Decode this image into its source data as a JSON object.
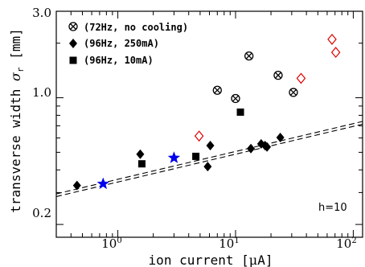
{
  "chart_data": {
    "type": "scatter",
    "xlabel": {
      "main": "ion current [",
      "greek": "μ",
      "unit": "A]"
    },
    "ylabel": {
      "main": "transverse width ",
      "symbol": "σ",
      "sub": "r",
      "unit": " [mm]"
    },
    "x_scale": "log",
    "y_scale": "log",
    "xlim": [
      0.3,
      120
    ],
    "ylim": [
      0.17,
      3.0
    ],
    "x_ticks": [
      {
        "value": 1,
        "base": "10",
        "exp": "0"
      },
      {
        "value": 10,
        "base": "10",
        "exp": "1"
      },
      {
        "value": 100,
        "base": "10",
        "exp": "2"
      }
    ],
    "y_ticks": [
      {
        "value": 0.2,
        "label": "0.2"
      },
      {
        "value": 1.0,
        "label": "1.0"
      },
      {
        "value": 3.0,
        "label": "3.0"
      }
    ],
    "legend_position": "top-left",
    "annotation": "h=10",
    "series": [
      {
        "name": "(72Hz, no cooling)",
        "marker": "circle-x",
        "color": "#000000",
        "x": [
          7,
          10,
          13,
          23,
          31
        ],
        "y": [
          1.1,
          0.99,
          1.7,
          1.33,
          1.07
        ]
      },
      {
        "name": "(96Hz, 250mA)",
        "marker": "diamond",
        "color": "#000000",
        "x": [
          0.45,
          1.55,
          5.8,
          6.1,
          13.5,
          16.5,
          17.8,
          18.5,
          24
        ],
        "y": [
          0.328,
          0.488,
          0.417,
          0.545,
          0.524,
          0.557,
          0.545,
          0.535,
          0.603
        ]
      },
      {
        "name": "(96Hz, 10mA)",
        "marker": "square",
        "color": "#000000",
        "x": [
          1.6,
          4.6,
          11
        ],
        "y": [
          0.432,
          0.475,
          0.833
        ]
      },
      {
        "marker": "open-diamond",
        "color": "#dd0000",
        "x": [
          4.9,
          36,
          66,
          71
        ],
        "y": [
          0.615,
          1.28,
          2.1,
          1.78
        ]
      },
      {
        "marker": "star",
        "color": "#0000ee",
        "x": [
          0.75,
          3.0
        ],
        "y": [
          0.335,
          0.466
        ]
      }
    ],
    "fit_lines": [
      {
        "x": [
          0.3,
          120
        ],
        "y": [
          0.295,
          0.74
        ]
      },
      {
        "x": [
          0.3,
          120
        ],
        "y": [
          0.285,
          0.715
        ]
      }
    ]
  }
}
